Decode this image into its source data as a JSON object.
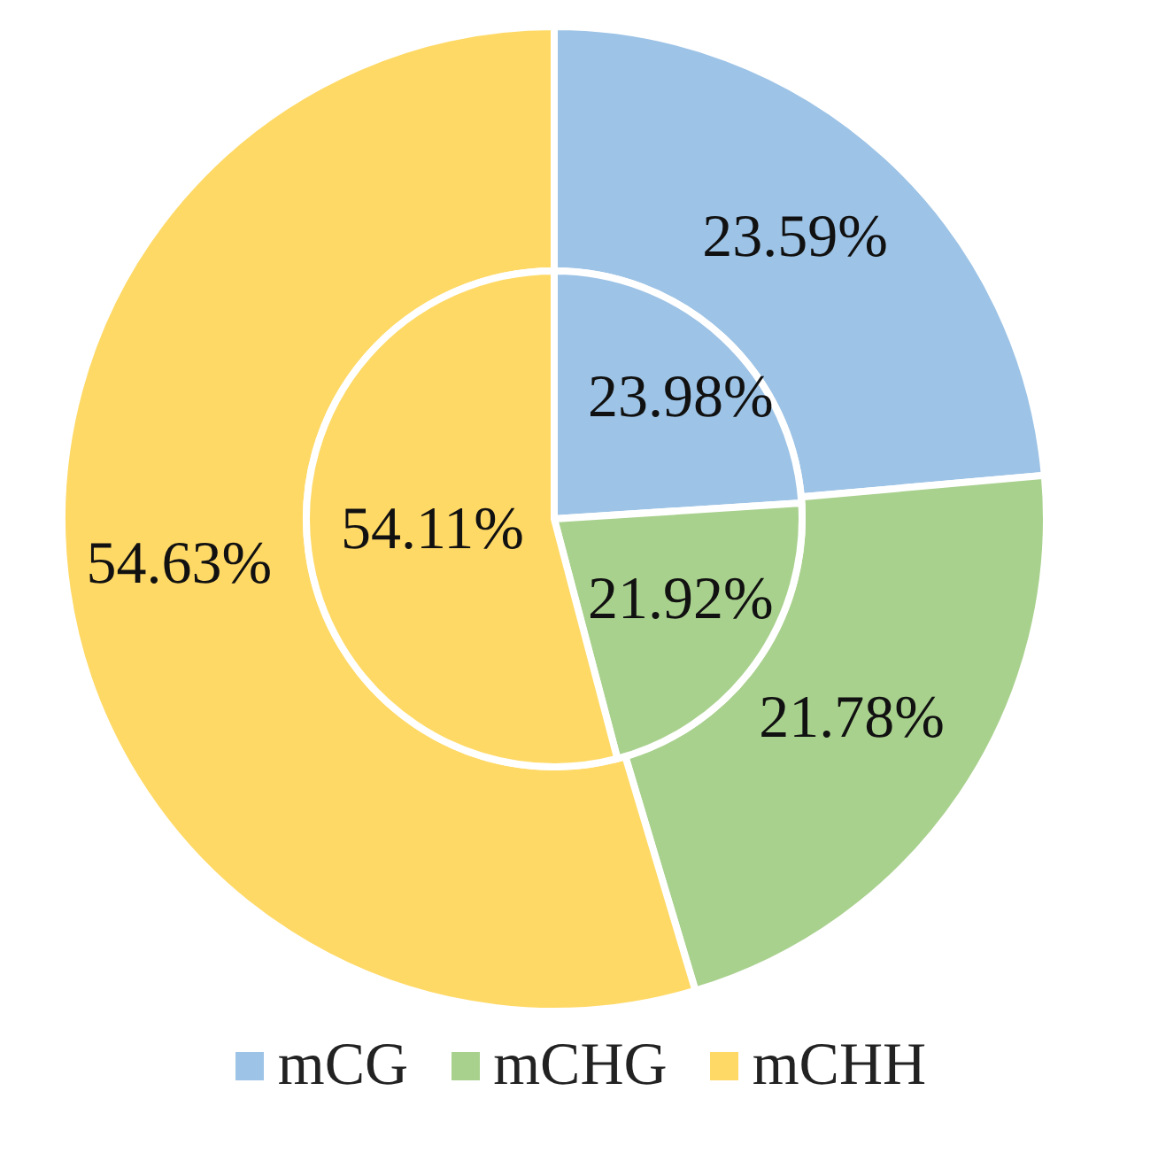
{
  "chart_data": {
    "type": "pie",
    "categories": [
      "mCG",
      "mCHG",
      "mCHH"
    ],
    "colors": [
      "#9dc3e6",
      "#a9d18e",
      "#ffd966"
    ],
    "series": [
      {
        "values": [
          23.59,
          21.78,
          54.63
        ],
        "value_labels": [
          "23.59%",
          "21.78%",
          "54.63%"
        ]
      },
      {
        "values": [
          23.98,
          21.92,
          54.11
        ],
        "value_labels": [
          "23.98%",
          "21.92%",
          "54.11%"
        ]
      }
    ],
    "legend": "bottom"
  }
}
